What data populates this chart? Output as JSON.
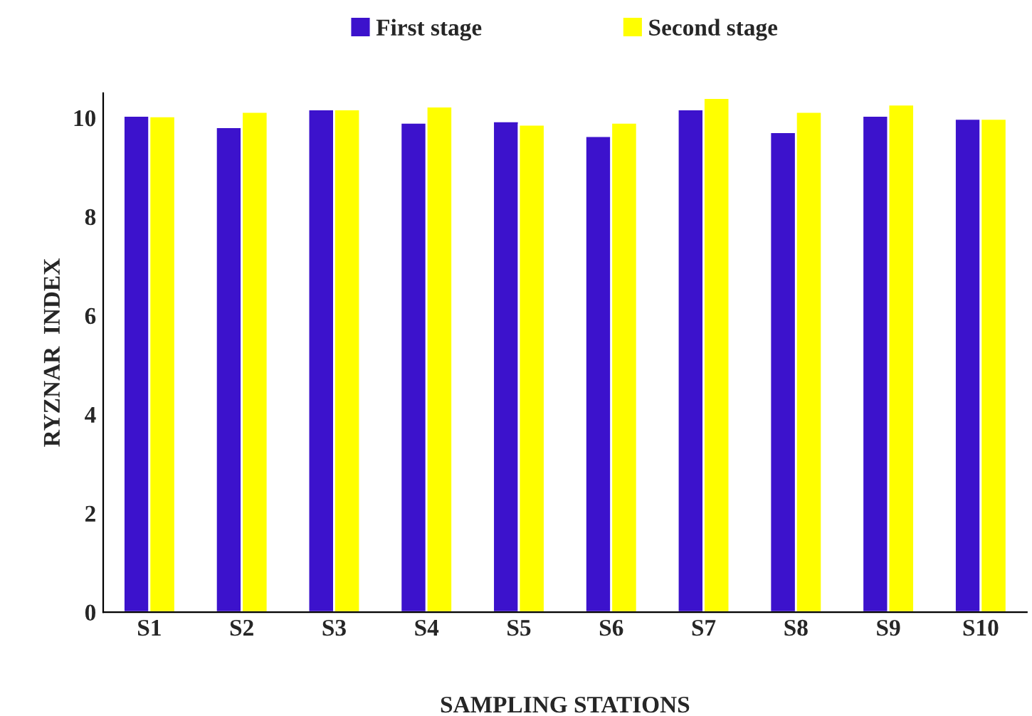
{
  "chart_data": {
    "type": "bar",
    "xlabel": "SAMPLING STATIONS",
    "ylabel": "RYZNAR  INDEX",
    "categories": [
      "S1",
      "S2",
      "S3",
      "S4",
      "S5",
      "S6",
      "S7",
      "S8",
      "S9",
      "S10"
    ],
    "series": [
      {
        "name": "First stage",
        "color": "#3c12cc",
        "values": [
          10.04,
          9.81,
          10.17,
          9.9,
          9.93,
          9.63,
          10.17,
          9.71,
          10.04,
          9.98
        ]
      },
      {
        "name": "Second stage",
        "color": "#ffff00",
        "values": [
          10.03,
          10.12,
          10.17,
          10.23,
          9.86,
          9.9,
          10.4,
          10.12,
          10.27,
          9.98
        ]
      }
    ],
    "ylim": [
      0,
      10.5
    ],
    "yticks": [
      0,
      2,
      4,
      6,
      8,
      10
    ],
    "grid": false,
    "legend": "top"
  }
}
